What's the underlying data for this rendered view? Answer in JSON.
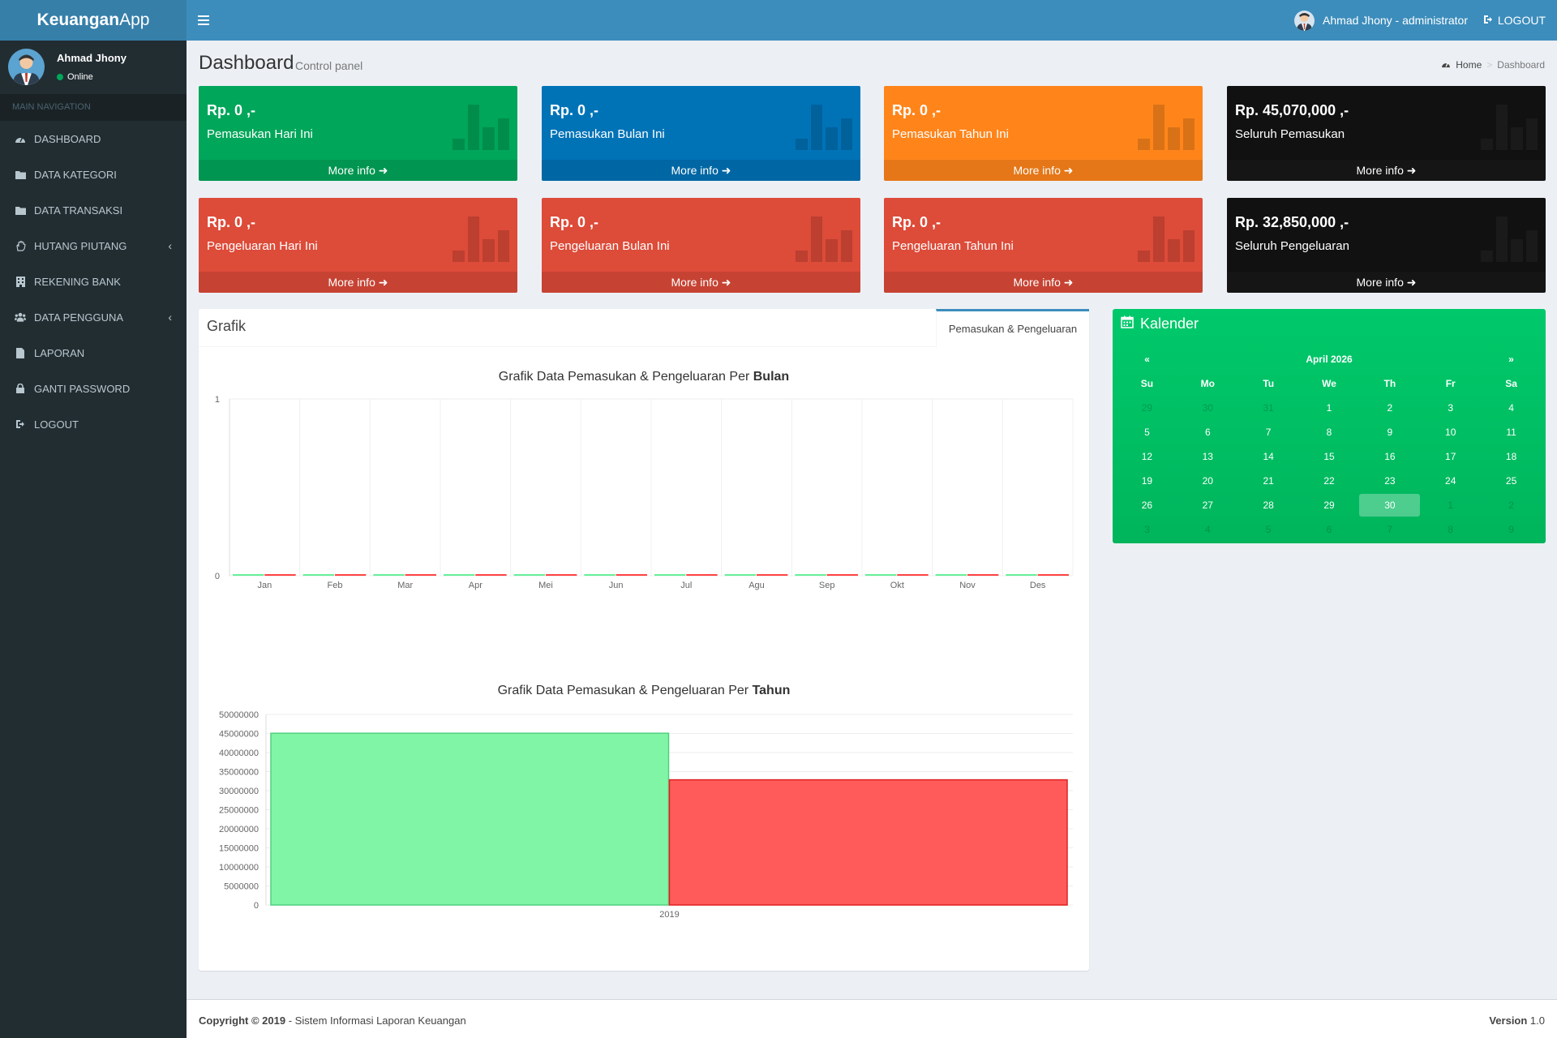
{
  "app": {
    "logo_bold": "Keuangan",
    "logo_rest": "App"
  },
  "navbar": {
    "user_label": "Ahmad Jhony - administrator",
    "logout_label": "LOGOUT"
  },
  "sidebar": {
    "user_name": "Ahmad Jhony",
    "user_status": "Online",
    "header": "MAIN NAVIGATION",
    "items": [
      {
        "label": "DASHBOARD",
        "icon": "dashboard-icon"
      },
      {
        "label": "DATA KATEGORI",
        "icon": "folder-icon"
      },
      {
        "label": "DATA TRANSAKSI",
        "icon": "folder-icon"
      },
      {
        "label": "HUTANG PIUTANG",
        "icon": "hand-icon"
      },
      {
        "label": "REKENING BANK",
        "icon": "building-icon"
      },
      {
        "label": "DATA PENGGUNA",
        "icon": "users-icon"
      },
      {
        "label": "LAPORAN",
        "icon": "file-icon"
      },
      {
        "label": "GANTI PASSWORD",
        "icon": "lock-icon"
      },
      {
        "label": "LOGOUT",
        "icon": "sign-out-icon"
      }
    ]
  },
  "content_header": {
    "title": "Dashboard",
    "subtitle": "Control panel",
    "crumb_home": "Home",
    "crumb_current": "Dashboard"
  },
  "stat_boxes": [
    {
      "amount": "Rp. 0 ,-",
      "label": "Pemasukan Hari Ini",
      "more": "More info",
      "color": "#00a65a"
    },
    {
      "amount": "Rp. 0 ,-",
      "label": "Pemasukan Bulan Ini",
      "more": "More info",
      "color": "#0073b7"
    },
    {
      "amount": "Rp. 0 ,-",
      "label": "Pemasukan Tahun Ini",
      "more": "More info",
      "color": "#ff851b"
    },
    {
      "amount": "Rp. 45,070,000 ,-",
      "label": "Seluruh Pemasukan",
      "more": "More info",
      "color": "#111111"
    },
    {
      "amount": "Rp. 0 ,-",
      "label": "Pengeluaran Hari Ini",
      "more": "More info",
      "color": "#dd4b39"
    },
    {
      "amount": "Rp. 0 ,-",
      "label": "Pengeluaran Bulan Ini",
      "more": "More info",
      "color": "#dd4b39"
    },
    {
      "amount": "Rp. 0 ,-",
      "label": "Pengeluaran Tahun Ini",
      "more": "More info",
      "color": "#dd4b39"
    },
    {
      "amount": "Rp. 32,850,000 ,-",
      "label": "Seluruh Pengeluaran",
      "more": "More info",
      "color": "#111111"
    }
  ],
  "grafik": {
    "title": "Grafik",
    "tab": "Pemasukan & Pengeluaran",
    "chart1_title_prefix": "Grafik Data Pemasukan & Pengeluaran Per ",
    "chart1_title_bold": "Bulan",
    "chart2_title_prefix": "Grafik Data Pemasukan & Pengeluaran Per ",
    "chart2_title_bold": "Tahun"
  },
  "chart_data": [
    {
      "type": "bar",
      "title": "Grafik Data Pemasukan & Pengeluaran Per Bulan",
      "categories": [
        "Jan",
        "Feb",
        "Mar",
        "Apr",
        "Mei",
        "Jun",
        "Jul",
        "Agu",
        "Sep",
        "Okt",
        "Nov",
        "Des"
      ],
      "series": [
        {
          "values": [
            0,
            0,
            0,
            0,
            0,
            0,
            0,
            0,
            0,
            0,
            0,
            0
          ],
          "color": "#66ee99"
        },
        {
          "values": [
            0,
            0,
            0,
            0,
            0,
            0,
            0,
            0,
            0,
            0,
            0,
            0
          ],
          "color": "#ff4444"
        }
      ],
      "ylim": [
        0,
        1
      ],
      "yticks": [
        "0",
        "1"
      ],
      "grid": true
    },
    {
      "type": "bar",
      "title": "Grafik Data Pemasukan & Pengeluaran Per Tahun",
      "categories": [
        "2019"
      ],
      "series": [
        {
          "values": [
            45070000
          ],
          "color": "#80f5a5"
        },
        {
          "values": [
            32850000
          ],
          "color": "#ff5b5b"
        }
      ],
      "ylim": [
        0,
        50000000
      ],
      "yticks": [
        "0",
        "5000000",
        "10000000",
        "15000000",
        "20000000",
        "25000000",
        "30000000",
        "35000000",
        "40000000",
        "45000000",
        "50000000"
      ],
      "grid": true
    }
  ],
  "calendar": {
    "title": "Kalender",
    "prev": "«",
    "next": "»",
    "month": "April 2026",
    "weekdays": [
      "Su",
      "Mo",
      "Tu",
      "We",
      "Th",
      "Fr",
      "Sa"
    ],
    "weeks": [
      [
        "29",
        "30",
        "31",
        "1",
        "2",
        "3",
        "4"
      ],
      [
        "5",
        "6",
        "7",
        "8",
        "9",
        "10",
        "11"
      ],
      [
        "12",
        "13",
        "14",
        "15",
        "16",
        "17",
        "18"
      ],
      [
        "19",
        "20",
        "21",
        "22",
        "23",
        "24",
        "25"
      ],
      [
        "26",
        "27",
        "28",
        "29",
        "30",
        "1",
        "2"
      ],
      [
        "3",
        "4",
        "5",
        "6",
        "7",
        "8",
        "9"
      ]
    ],
    "dim_cells": [
      [
        0,
        0
      ],
      [
        0,
        1
      ],
      [
        0,
        2
      ],
      [
        4,
        5
      ],
      [
        4,
        6
      ],
      [
        5,
        0
      ],
      [
        5,
        1
      ],
      [
        5,
        2
      ],
      [
        5,
        3
      ],
      [
        5,
        4
      ],
      [
        5,
        5
      ],
      [
        5,
        6
      ]
    ],
    "today": [
      4,
      4
    ]
  },
  "footer": {
    "copyright_bold": "Copyright © 2019",
    "copyright_rest": " - Sistem Informasi Laporan Keuangan",
    "version_bold": "Version",
    "version_rest": " 1.0"
  }
}
